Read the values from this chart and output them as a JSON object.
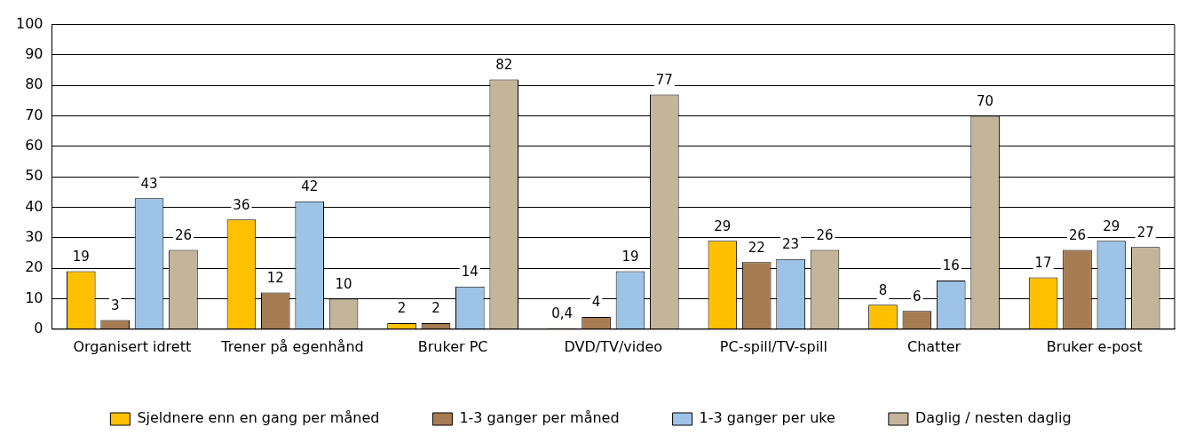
{
  "chart_data": {
    "type": "bar",
    "categories": [
      "Organisert idrett",
      "Trener på egenhånd",
      "Bruker PC",
      "DVD/TV/video",
      "PC-spill/TV-spill",
      "Chatter",
      "Bruker e-post"
    ],
    "series": [
      {
        "name": "Sjeldnere enn en gang per måned",
        "color": "#ffc000",
        "values": [
          19,
          36,
          2,
          0.4,
          29,
          8,
          17
        ],
        "value_labels": [
          "19",
          "36",
          "2",
          "0,4",
          "29",
          "8",
          "17"
        ]
      },
      {
        "name": "1-3 ganger per måned",
        "color": "#a67c52",
        "values": [
          3,
          12,
          2,
          4,
          22,
          6,
          26
        ],
        "value_labels": [
          "3",
          "12",
          "2",
          "4",
          "22",
          "6",
          "26"
        ]
      },
      {
        "name": "1-3 ganger per uke",
        "color": "#9dc3e6",
        "values": [
          43,
          42,
          14,
          19,
          23,
          16,
          29
        ],
        "value_labels": [
          "43",
          "42",
          "14",
          "19",
          "23",
          "16",
          "29"
        ]
      },
      {
        "name": "Daglig / nesten daglig",
        "color": "#c4b59a",
        "values": [
          26,
          10,
          82,
          77,
          26,
          70,
          27
        ],
        "value_labels": [
          "26",
          "10",
          "82",
          "77",
          "26",
          "70",
          "27"
        ]
      }
    ],
    "ylim": [
      0,
      100
    ],
    "yticks": [
      0,
      10,
      20,
      30,
      40,
      50,
      60,
      70,
      80,
      90,
      100
    ],
    "grid": "y",
    "legend": "bottom"
  }
}
